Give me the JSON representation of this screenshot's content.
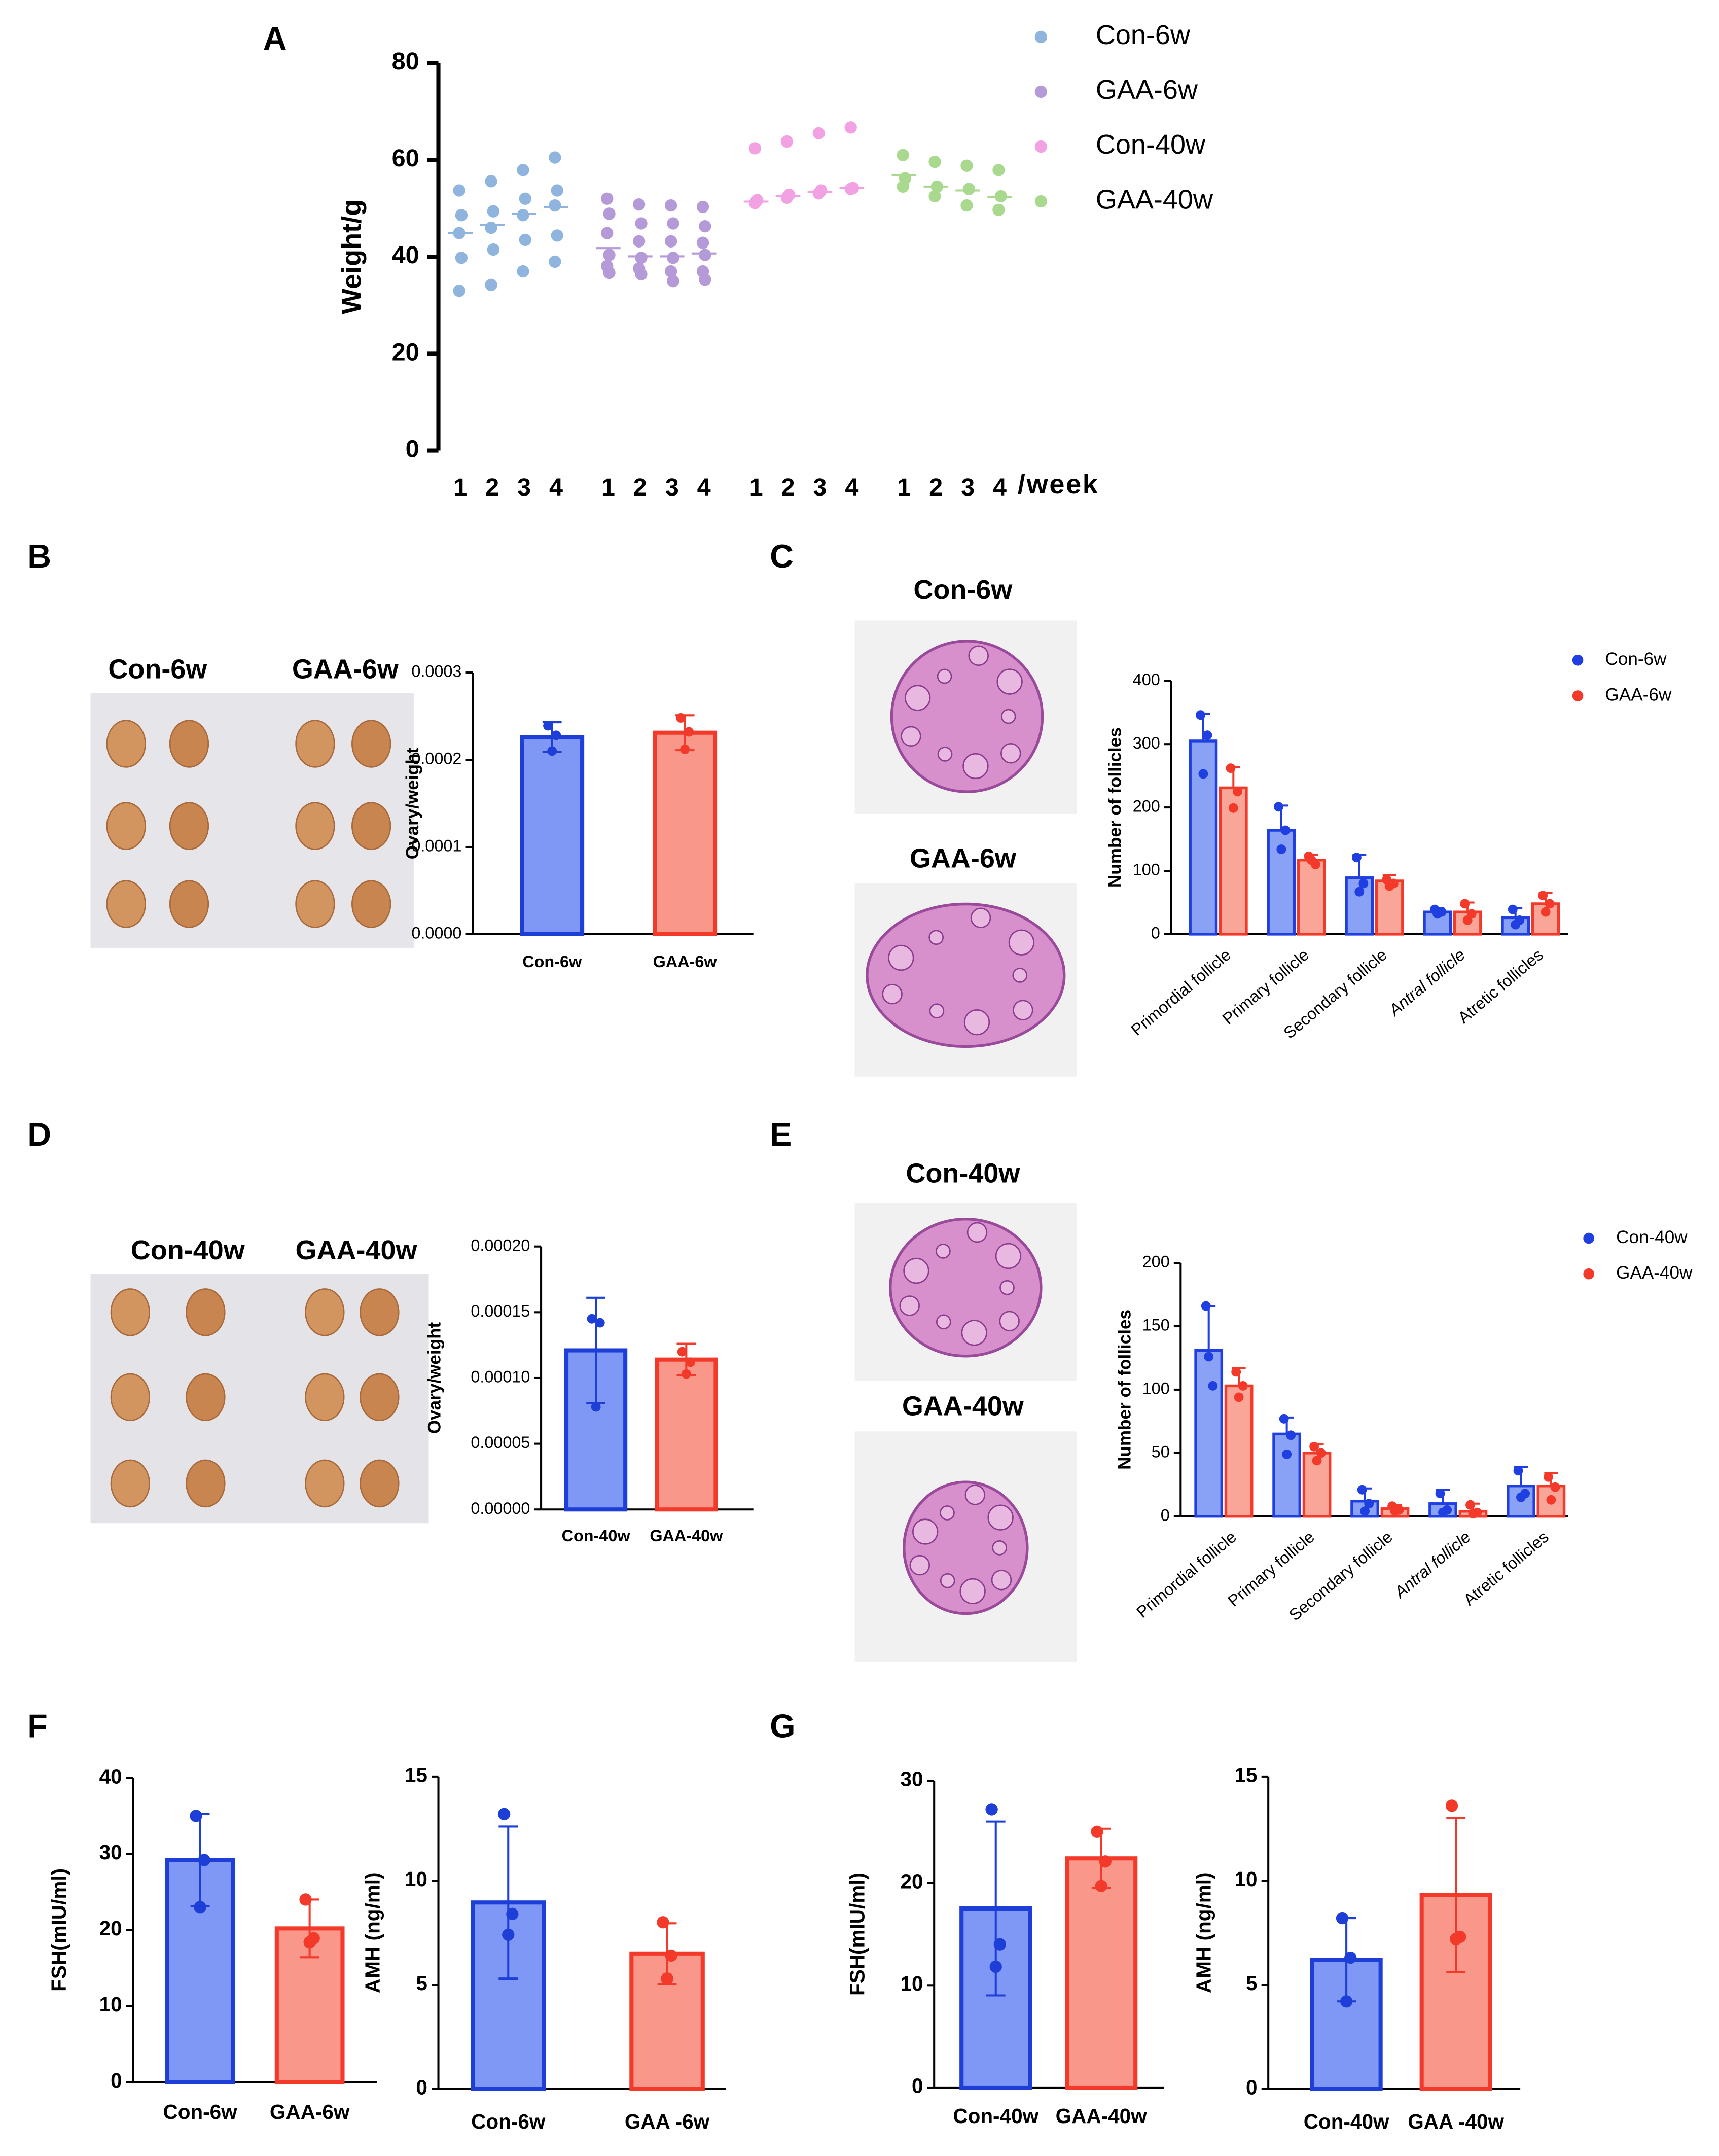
{
  "panel_labels": [
    "A",
    "B",
    "C",
    "D",
    "E",
    "F",
    "G"
  ],
  "photo_labels": {
    "B": [
      "Con-6w",
      "GAA-6w"
    ],
    "C": [
      "Con-6w",
      "GAA-6w"
    ],
    "D": [
      "Con-40w",
      "GAA-40w"
    ],
    "E": [
      "Con-40w",
      "GAA-40w"
    ]
  },
  "chart_data": [
    {
      "type": "dot",
      "y_label": "Weight/g",
      "x_label": "/week",
      "categories": [
        "1",
        "2",
        "3",
        "4"
      ],
      "ylim": [
        0,
        80
      ],
      "yticks": [
        0,
        20,
        40,
        60,
        80
      ],
      "series": [
        {
          "name": "Con-6w",
          "color": "#8fb4dd",
          "values": [
            [
              53.7,
              48.6,
              44.9,
              39.8,
              33.0
            ],
            [
              55.6,
              49.4,
              46.0,
              41.5,
              34.2
            ],
            [
              57.9,
              52.0,
              48.6,
              43.5,
              37.0
            ],
            [
              60.5,
              53.7,
              50.6,
              44.4,
              39.0
            ]
          ],
          "means": [
            44.9,
            46.6,
            48.9,
            50.3
          ]
        },
        {
          "name": "GAA-6w",
          "color": "#b49ad6",
          "values": [
            [
              52.0,
              48.9,
              44.9,
              40.4,
              38.1,
              36.7
            ],
            [
              50.8,
              46.9,
              43.2,
              39.8,
              37.6,
              36.4
            ],
            [
              50.6,
              46.9,
              43.2,
              39.8,
              37.0,
              35.0
            ],
            [
              50.3,
              46.3,
              42.9,
              40.4,
              37.0,
              35.3
            ]
          ],
          "means": [
            41.8,
            40.1,
            40.1,
            40.7
          ]
        },
        {
          "name": "Con-40w",
          "color": "#f2a1e2",
          "values": [
            [
              62.4,
              51.7,
              51.1
            ],
            [
              63.8,
              52.8,
              52.2
            ],
            [
              65.5,
              53.7,
              53.1
            ],
            [
              66.7,
              54.2,
              54.0
            ]
          ],
          "means": [
            51.4,
            52.5,
            53.4,
            54.2
          ]
        },
        {
          "name": "GAA-40w",
          "color": "#a9d98e",
          "values": [
            [
              61.0,
              56.2,
              54.5
            ],
            [
              59.6,
              54.5,
              52.5
            ],
            [
              58.8,
              54.0,
              50.6
            ],
            [
              57.9,
              52.5,
              49.7
            ]
          ],
          "means": [
            56.8,
            54.5,
            53.7,
            52.3
          ]
        }
      ]
    },
    {
      "type": "bar",
      "y_label": "Ovary/weight",
      "categories": [
        "Con-6w",
        "GAA-6w"
      ],
      "values": [
        0.000226,
        0.000231
      ],
      "errors": [
        1.7e-05,
        2e-05
      ],
      "points": [
        [
          0.000239,
          0.000228,
          0.00021
        ],
        [
          0.000248,
          0.000232,
          0.000212
        ]
      ],
      "colors": [
        "#7f98f5",
        "#f9978a"
      ],
      "edge_colors": [
        "#1d3fd8",
        "#f33a2a"
      ],
      "ylim": [
        0,
        0.0003
      ],
      "yticks": [
        {
          "value": 0,
          "label": "0.0000"
        },
        {
          "value": 0.0001,
          "label": "0.0001"
        },
        {
          "value": 0.0002,
          "label": "0.0002"
        },
        {
          "value": 0.0003,
          "label": "0.0003"
        }
      ]
    },
    {
      "type": "grouped_bar",
      "y_label": "Number of follicles",
      "categories": [
        "Primordial follicle",
        "Primary follicle",
        "Secondary follicle",
        "Antral follicle",
        "Atretic follicles"
      ],
      "ylim": [
        0,
        400
      ],
      "yticks": [
        0,
        100,
        200,
        300,
        400
      ],
      "series": [
        {
          "name": "Con-6w",
          "color": "#8aa2f5",
          "edge_color": "#1f3fe0",
          "values": [
            305,
            164,
            89,
            35,
            26
          ],
          "errors": [
            43,
            39,
            36,
            6,
            15
          ],
          "points": [
            [
              346,
              314,
              253
            ],
            [
              201,
              164,
              134
            ],
            [
              121,
              80,
              67
            ],
            [
              39,
              35,
              32
            ],
            [
              39,
              22,
              15
            ]
          ]
        },
        {
          "name": "GAA-6w",
          "color": "#f9a597",
          "edge_color": "#f33a2a",
          "values": [
            231,
            117,
            84,
            35,
            48
          ],
          "errors": [
            33,
            8,
            9,
            15,
            17
          ],
          "points": [
            [
              262,
              225,
              199
            ],
            [
              123,
              110,
              117
            ],
            [
              86,
              80,
              76
            ],
            [
              48,
              32,
              22
            ],
            [
              61,
              48,
              35
            ]
          ]
        }
      ]
    },
    {
      "type": "bar",
      "y_label": "Ovary/weight",
      "categories": [
        "Con-40w",
        "GAA-40w"
      ],
      "values": [
        0.000121,
        0.000114
      ],
      "errors": [
        4e-05,
        1.2e-05
      ],
      "points": [
        [
          0.000145,
          0.000142,
          7.8e-05
        ],
        [
          0.00012,
          0.000112,
          0.000103
        ]
      ],
      "colors": [
        "#7f98f5",
        "#f9978a"
      ],
      "edge_colors": [
        "#1d3fd8",
        "#f33a2a"
      ],
      "ylim": [
        0,
        0.0002
      ],
      "yticks": [
        {
          "value": 0,
          "label": "0.00000"
        },
        {
          "value": 5e-05,
          "label": "0.00005"
        },
        {
          "value": 0.0001,
          "label": "0.00010"
        },
        {
          "value": 0.00015,
          "label": "0.00015"
        },
        {
          "value": 0.0002,
          "label": "0.00020"
        }
      ]
    },
    {
      "type": "grouped_bar",
      "y_label": "Number of follicles",
      "categories": [
        "Primordial follicle",
        "Primary follicle",
        "Secondary follicle",
        "Antral follicle",
        "Atretic follicles"
      ],
      "ylim": [
        0,
        200
      ],
      "yticks": [
        0,
        50,
        100,
        150,
        200
      ],
      "series": [
        {
          "name": "Con-40w",
          "color": "#8aa2f5",
          "edge_color": "#1f3fe0",
          "values": [
            131,
            65,
            12,
            10,
            24
          ],
          "errors": [
            35,
            13,
            10,
            11,
            15
          ],
          "points": [
            [
              166,
              103,
              126
            ],
            [
              77,
              64,
              49
            ],
            [
              21,
              10,
              4
            ],
            [
              18,
              5,
              3
            ],
            [
              36,
              18,
              15
            ]
          ]
        },
        {
          "name": "GAA-40w",
          "color": "#f9a597",
          "edge_color": "#f33a2a",
          "values": [
            103,
            50,
            6,
            4,
            24
          ],
          "errors": [
            14,
            7,
            3,
            6,
            10
          ],
          "points": [
            [
              114,
              103,
              94
            ],
            [
              55,
              50,
              44
            ],
            [
              8,
              5,
              4
            ],
            [
              9,
              3,
              2
            ],
            [
              31,
              23,
              13
            ]
          ]
        }
      ]
    },
    {
      "type": "bar",
      "y_label": "FSH(mIU/ml)",
      "categories": [
        "Con-6w",
        "GAA-6w"
      ],
      "values": [
        29.2,
        20.2
      ],
      "errors": [
        6.1,
        3.8
      ],
      "points": [
        [
          35,
          29.2,
          23
        ],
        [
          24,
          18.9,
          18.4
        ]
      ],
      "colors": [
        "#7f98f5",
        "#f9978a"
      ],
      "edge_colors": [
        "#1d3fd8",
        "#f33a2a"
      ],
      "ylim": [
        0,
        40
      ],
      "yticks": [
        0,
        10,
        20,
        30,
        40
      ]
    },
    {
      "type": "bar",
      "y_label": "AMH  (ng/ml)",
      "categories": [
        "Con-6w",
        "GAA -6w"
      ],
      "values": [
        8.95,
        6.5
      ],
      "errors": [
        3.65,
        1.45
      ],
      "points": [
        [
          13.2,
          8.4,
          7.4
        ],
        [
          8,
          6.4,
          5.3
        ]
      ],
      "colors": [
        "#7f98f5",
        "#f9978a"
      ],
      "edge_colors": [
        "#1d3fd8",
        "#f33a2a"
      ],
      "ylim": [
        0,
        15
      ],
      "yticks": [
        0,
        5,
        10,
        15
      ]
    },
    {
      "type": "bar",
      "y_label": "FSH(mIU/ml)",
      "categories": [
        "Con-40w",
        "GAA-40w"
      ],
      "values": [
        17.5,
        22.4
      ],
      "errors": [
        8.5,
        2.9
      ],
      "points": [
        [
          27.2,
          14,
          11.8
        ],
        [
          25,
          22.1,
          19.7
        ]
      ],
      "colors": [
        "#7f98f5",
        "#f9978a"
      ],
      "edge_colors": [
        "#1d3fd8",
        "#f33a2a"
      ],
      "ylim": [
        0,
        30
      ],
      "yticks": [
        0,
        10,
        20,
        30
      ]
    },
    {
      "type": "bar",
      "y_label": "AMH  (ng/ml)",
      "categories": [
        "Con-40w",
        "GAA -40w"
      ],
      "values": [
        6.2,
        9.3
      ],
      "errors": [
        2.0,
        3.7
      ],
      "points": [
        [
          8.2,
          6.3,
          4.2
        ],
        [
          13.6,
          7.3,
          7.2
        ]
      ],
      "colors": [
        "#7f98f5",
        "#f9978a"
      ],
      "edge_colors": [
        "#1d3fd8",
        "#f33a2a"
      ],
      "ylim": [
        0,
        15
      ],
      "yticks": [
        0,
        5,
        10,
        15
      ]
    }
  ]
}
